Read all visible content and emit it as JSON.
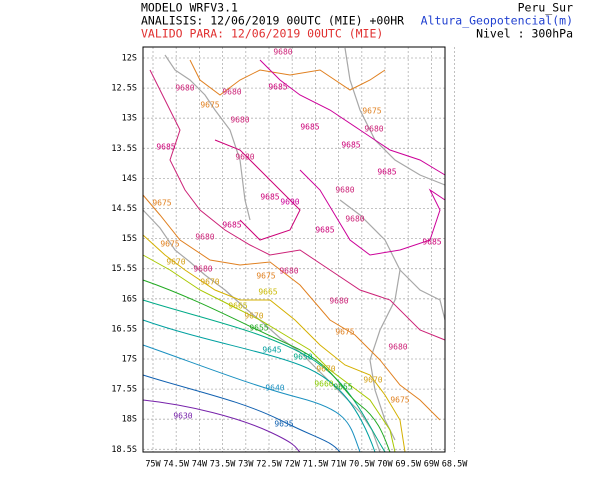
{
  "header": {
    "model": "MODELO WRFV3.1",
    "analysis": "ANALISIS: 12/06/2019 00UTC (MIE) +00HR",
    "valid": "VALIDO PARA: 12/06/2019 00UTC (MIE)",
    "domain": "Peru_Sur",
    "variable": "Altura_Geopotencial(m)",
    "level": "Nivel : 300hPa"
  },
  "map": {
    "lat_labels": [
      "12S",
      "12.5S",
      "13S",
      "13.5S",
      "14S",
      "14.5S",
      "15S",
      "15.5S",
      "16S",
      "16.5S",
      "17S",
      "17.5S",
      "18S",
      "18.5S"
    ],
    "lon_labels": [
      "75W",
      "74.5W",
      "74W",
      "73.5W",
      "73W",
      "72.5W",
      "72W",
      "71.5W",
      "71W",
      "70.5W",
      "70W",
      "69.5W",
      "69W",
      "68.5W"
    ],
    "contour_labels": [
      "9680",
      "9680",
      "9680",
      "9685",
      "9675",
      "9680",
      "9685",
      "9675",
      "9680",
      "9685",
      "9685",
      "9680",
      "9685",
      "9680",
      "9685",
      "9690",
      "9675",
      "9680",
      "9685",
      "9685",
      "9680",
      "9685",
      "9675",
      "9670",
      "9680",
      "9675",
      "9680",
      "9670",
      "9665",
      "9680",
      "9665",
      "9670",
      "9675",
      "9655",
      "9680",
      "9645",
      "9650",
      "9670",
      "9660",
      "9655",
      "9670",
      "9640",
      "9675",
      "9630",
      "9635"
    ]
  }
}
